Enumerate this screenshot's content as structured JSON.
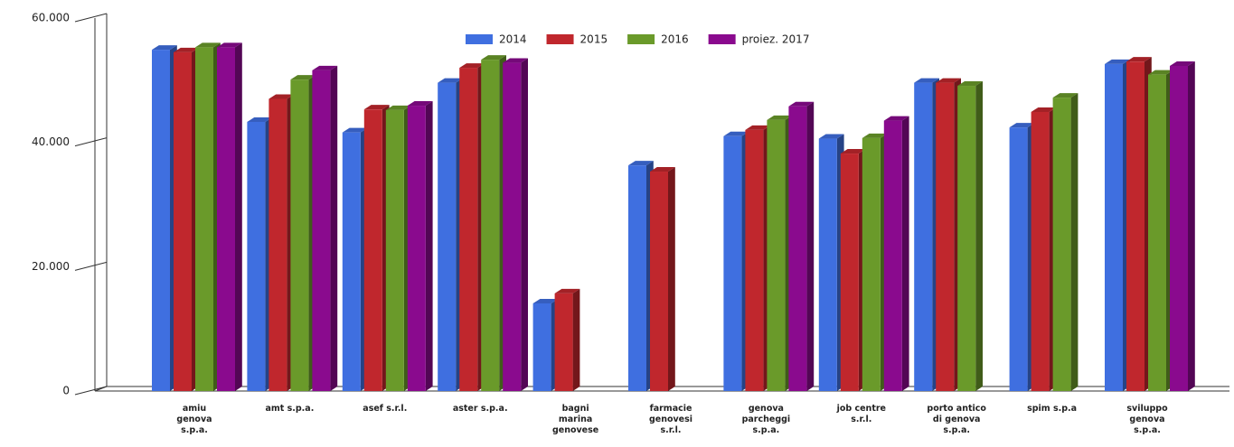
{
  "chart_data": {
    "type": "bar3d",
    "categories": [
      "amiu genova s.p.a.",
      "amt s.p.a.",
      "asef s.r.l.",
      "aster s.p.a.",
      "bagni marina genovese",
      "farmacie genovesi s.r.l.",
      "genova parcheggi s.p.a.",
      "job centre s.r.l.",
      "porto antico di genova s.p.a.",
      "spim s.p.a",
      "sviluppo genova s.p.a."
    ],
    "series": [
      {
        "name": "2014",
        "color": "#3f6fe0",
        "values": [
          54.9,
          43.3,
          41.6,
          49.6,
          14.1,
          36.3,
          41.0,
          40.6,
          49.6,
          42.4,
          52.6
        ]
      },
      {
        "name": "2015",
        "color": "#c0272d",
        "values": [
          54.5,
          47.0,
          45.3,
          52.0,
          15.7,
          35.3,
          42.0,
          38.2,
          49.6,
          44.9,
          53.0
        ]
      },
      {
        "name": "2016",
        "color": "#6a9a2a",
        "values": [
          55.3,
          50.1,
          45.2,
          53.3,
          null,
          null,
          43.6,
          40.7,
          49.1,
          47.2,
          50.9
        ]
      },
      {
        "name": "proiez. 2017",
        "color": "#8a0a8e",
        "values": [
          55.3,
          51.6,
          45.9,
          52.8,
          null,
          null,
          45.8,
          43.5,
          null,
          null,
          52.3
        ]
      }
    ],
    "ylim": [
      0,
      60
    ],
    "yticks": [
      0,
      {
        "value": 20,
        "label": "20.000"
      },
      {
        "value": 40,
        "label": "40.000"
      },
      {
        "value": 60,
        "label": "60.000"
      }
    ],
    "legend": "top"
  }
}
